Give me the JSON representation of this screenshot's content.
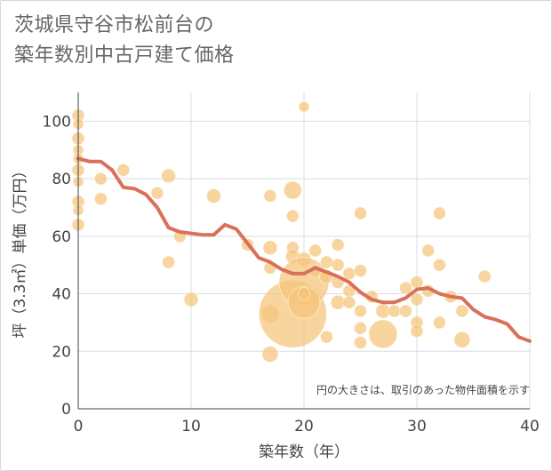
{
  "title_line1": "茨城県守谷市松前台の",
  "title_line2": "築年数別中古戸建て価格",
  "note": "円の大きさは、取引のあった物件面積を示す",
  "colors": {
    "bubble": "#f5c57a",
    "line": "#d9705a",
    "grid": "#d8dde3",
    "axis": "#444444"
  },
  "chart_data": {
    "type": "scatter",
    "xlabel": "築年数（年）",
    "ylabel": "坪（3.3㎡）単価（万円）",
    "xlim": [
      0,
      40
    ],
    "ylim": [
      0,
      110
    ],
    "xticks": [
      0,
      10,
      20,
      30,
      40
    ],
    "yticks": [
      0,
      20,
      40,
      60,
      80,
      100
    ],
    "grid": true,
    "bubbles": [
      {
        "x": 0,
        "y": 102,
        "r": 7
      },
      {
        "x": 0,
        "y": 99,
        "r": 6
      },
      {
        "x": 0,
        "y": 94,
        "r": 7
      },
      {
        "x": 0,
        "y": 90,
        "r": 6
      },
      {
        "x": 0,
        "y": 87,
        "r": 6
      },
      {
        "x": 0,
        "y": 83,
        "r": 7
      },
      {
        "x": 0,
        "y": 79,
        "r": 6
      },
      {
        "x": 0,
        "y": 72,
        "r": 7
      },
      {
        "x": 0,
        "y": 69,
        "r": 6
      },
      {
        "x": 0,
        "y": 64,
        "r": 7
      },
      {
        "x": 2,
        "y": 80,
        "r": 7
      },
      {
        "x": 2,
        "y": 73,
        "r": 7
      },
      {
        "x": 4,
        "y": 83,
        "r": 7
      },
      {
        "x": 7,
        "y": 75,
        "r": 7
      },
      {
        "x": 8,
        "y": 81,
        "r": 8
      },
      {
        "x": 8,
        "y": 51,
        "r": 7
      },
      {
        "x": 9,
        "y": 60,
        "r": 7
      },
      {
        "x": 10,
        "y": 38,
        "r": 8
      },
      {
        "x": 12,
        "y": 74,
        "r": 8
      },
      {
        "x": 15,
        "y": 57,
        "r": 7
      },
      {
        "x": 17,
        "y": 74,
        "r": 7
      },
      {
        "x": 17,
        "y": 56,
        "r": 8
      },
      {
        "x": 17,
        "y": 49,
        "r": 7
      },
      {
        "x": 17,
        "y": 33,
        "r": 10
      },
      {
        "x": 17,
        "y": 19,
        "r": 9
      },
      {
        "x": 19,
        "y": 76,
        "r": 10
      },
      {
        "x": 19,
        "y": 67,
        "r": 7
      },
      {
        "x": 19,
        "y": 56,
        "r": 7
      },
      {
        "x": 19,
        "y": 53,
        "r": 8
      },
      {
        "x": 19,
        "y": 33,
        "r": 38
      },
      {
        "x": 20,
        "y": 105,
        "r": 6
      },
      {
        "x": 20,
        "y": 52,
        "r": 8
      },
      {
        "x": 20,
        "y": 44,
        "r": 28
      },
      {
        "x": 20,
        "y": 37,
        "r": 18
      },
      {
        "x": 20,
        "y": 40,
        "r": 7
      },
      {
        "x": 21,
        "y": 55,
        "r": 7
      },
      {
        "x": 21,
        "y": 48,
        "r": 7
      },
      {
        "x": 22,
        "y": 51,
        "r": 7
      },
      {
        "x": 22,
        "y": 46,
        "r": 8
      },
      {
        "x": 22,
        "y": 25,
        "r": 7
      },
      {
        "x": 23,
        "y": 57,
        "r": 7
      },
      {
        "x": 23,
        "y": 50,
        "r": 7
      },
      {
        "x": 23,
        "y": 44,
        "r": 7
      },
      {
        "x": 23,
        "y": 37,
        "r": 8
      },
      {
        "x": 24,
        "y": 47,
        "r": 7
      },
      {
        "x": 24,
        "y": 41,
        "r": 7
      },
      {
        "x": 24,
        "y": 37,
        "r": 7
      },
      {
        "x": 25,
        "y": 68,
        "r": 7
      },
      {
        "x": 25,
        "y": 48,
        "r": 7
      },
      {
        "x": 25,
        "y": 34,
        "r": 7
      },
      {
        "x": 25,
        "y": 28,
        "r": 7
      },
      {
        "x": 25,
        "y": 23,
        "r": 7
      },
      {
        "x": 26,
        "y": 39,
        "r": 7
      },
      {
        "x": 27,
        "y": 34,
        "r": 8
      },
      {
        "x": 27,
        "y": 26,
        "r": 16
      },
      {
        "x": 28,
        "y": 34,
        "r": 7
      },
      {
        "x": 29,
        "y": 42,
        "r": 7
      },
      {
        "x": 29,
        "y": 34,
        "r": 7
      },
      {
        "x": 30,
        "y": 44,
        "r": 7
      },
      {
        "x": 30,
        "y": 38,
        "r": 7
      },
      {
        "x": 30,
        "y": 30,
        "r": 7
      },
      {
        "x": 30,
        "y": 27,
        "r": 7
      },
      {
        "x": 31,
        "y": 55,
        "r": 7
      },
      {
        "x": 31,
        "y": 41,
        "r": 7
      },
      {
        "x": 32,
        "y": 68,
        "r": 7
      },
      {
        "x": 32,
        "y": 50,
        "r": 7
      },
      {
        "x": 32,
        "y": 30,
        "r": 7
      },
      {
        "x": 33,
        "y": 39,
        "r": 7
      },
      {
        "x": 34,
        "y": 34,
        "r": 7
      },
      {
        "x": 34,
        "y": 24,
        "r": 9
      },
      {
        "x": 36,
        "y": 46,
        "r": 7
      }
    ],
    "trend": [
      [
        0,
        87
      ],
      [
        1,
        86
      ],
      [
        2,
        86
      ],
      [
        3,
        83
      ],
      [
        4,
        77
      ],
      [
        5,
        76.5
      ],
      [
        6,
        74.5
      ],
      [
        7,
        70
      ],
      [
        8,
        63
      ],
      [
        9,
        61.5
      ],
      [
        10,
        61
      ],
      [
        11,
        60.5
      ],
      [
        12,
        60.5
      ],
      [
        13,
        64
      ],
      [
        14,
        62.5
      ],
      [
        15,
        57.5
      ],
      [
        16,
        52.5
      ],
      [
        17,
        51
      ],
      [
        18,
        48.5
      ],
      [
        19,
        47
      ],
      [
        20,
        47
      ],
      [
        21,
        49
      ],
      [
        22,
        47.5
      ],
      [
        23,
        46
      ],
      [
        24,
        44
      ],
      [
        25,
        40.5
      ],
      [
        26,
        38
      ],
      [
        27,
        37
      ],
      [
        28,
        37
      ],
      [
        29,
        38.5
      ],
      [
        30,
        41.5
      ],
      [
        31,
        42
      ],
      [
        32,
        40
      ],
      [
        33,
        39
      ],
      [
        34,
        38.5
      ],
      [
        35,
        34.5
      ],
      [
        36,
        32
      ],
      [
        37,
        31
      ],
      [
        38,
        29.5
      ],
      [
        39,
        25
      ],
      [
        40,
        23.5
      ]
    ]
  }
}
